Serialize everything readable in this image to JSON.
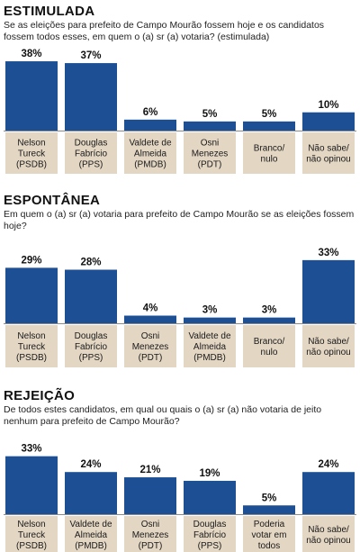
{
  "chart_data": [
    {
      "type": "bar",
      "title": "ESTIMULADA",
      "subtitle": "Se as eleições para prefeito de Campo Mourão fossem hoje e os candidatos fossem todos esses, em quem o (a) sr (a) votaria? (estimulada)",
      "categories": [
        [
          "Nelson",
          "Tureck",
          "(PSDB)"
        ],
        [
          "Douglas",
          "Fabrício",
          "(PPS)"
        ],
        [
          "Valdete de",
          "Almeida",
          "(PMDB)"
        ],
        [
          "Osni",
          "Menezes",
          "(PDT)"
        ],
        [
          "Branco/",
          "nulo"
        ],
        [
          "Não sabe/",
          "não opinou"
        ]
      ],
      "values": [
        38,
        37,
        6,
        5,
        5,
        10
      ],
      "value_labels": [
        "38%",
        "37%",
        "6%",
        "5%",
        "5%",
        "10%"
      ],
      "ylim": [
        0,
        40
      ],
      "bar_color": "#1c4f94",
      "label_band_color": "#e3d6c3"
    },
    {
      "type": "bar",
      "title": "ESPONTÂNEA",
      "subtitle": "Em quem o (a) sr (a) votaria para prefeito de Campo Mourão se as eleições fossem hoje?",
      "categories": [
        [
          "Nelson",
          "Tureck",
          "(PSDB)"
        ],
        [
          "Douglas",
          "Fabrício",
          "(PPS)"
        ],
        [
          "Osni",
          "Menezes",
          "(PDT)"
        ],
        [
          "Valdete de",
          "Almeida",
          "(PMDB)"
        ],
        [
          "Branco/",
          "nulo"
        ],
        [
          "Não sabe/",
          "não opinou"
        ]
      ],
      "values": [
        29,
        28,
        4,
        3,
        3,
        33
      ],
      "value_labels": [
        "29%",
        "28%",
        "4%",
        "3%",
        "3%",
        "33%"
      ],
      "ylim": [
        0,
        40
      ],
      "bar_color": "#1c4f94",
      "label_band_color": "#e3d6c3"
    },
    {
      "type": "bar",
      "title": "REJEIÇÃO",
      "subtitle": "De todos estes candidatos, em qual ou quais o (a) sr (a) não votaria de jeito nenhum para prefeito de Campo Mourão?",
      "categories": [
        [
          "Nelson",
          "Tureck",
          "(PSDB)"
        ],
        [
          "Valdete de",
          "Almeida",
          "(PMDB)"
        ],
        [
          "Osni",
          "Menezes",
          "(PDT)"
        ],
        [
          "Douglas",
          "Fabrício",
          "(PPS)"
        ],
        [
          "Poderia",
          "votar em",
          "todos"
        ],
        [
          "Não sabe/",
          "não opinou"
        ]
      ],
      "values": [
        33,
        24,
        21,
        19,
        5,
        24
      ],
      "value_labels": [
        "33%",
        "24%",
        "21%",
        "19%",
        "5%",
        "24%"
      ],
      "ylim": [
        0,
        40
      ],
      "bar_color": "#1c4f94",
      "label_band_color": "#e3d6c3"
    }
  ]
}
